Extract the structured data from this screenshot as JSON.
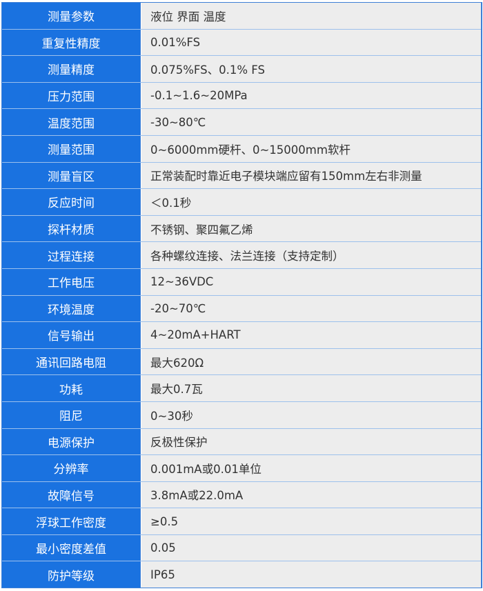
{
  "rows": [
    {
      "k": "测量参数",
      "v": "液位  界面  温度"
    },
    {
      "k": "重复性精度",
      "v": "0.01%FS"
    },
    {
      "k": "测量精度",
      "v": "0.075%FS、0.1% FS"
    },
    {
      "k": "压力范围",
      "v": "-0.1~1.6~20MPa"
    },
    {
      "k": "温度范围",
      "v": "-30~80℃"
    },
    {
      "k": "测量范围",
      "v": "0~6000mm硬杆、0~15000mm软杆"
    },
    {
      "k": "测量盲区",
      "v": "正常装配时靠近电子模块端应留有150mm左右非测量"
    },
    {
      "k": "反应时间",
      "v": "＜0.1秒"
    },
    {
      "k": "探杆材质",
      "v": "不锈钢、聚四氟乙烯"
    },
    {
      "k": "过程连接",
      "v": "各种螺纹连接、法兰连接（支持定制）"
    },
    {
      "k": "工作电压",
      "v": "12~36VDC"
    },
    {
      "k": "环境温度",
      "v": "-20~70℃"
    },
    {
      "k": "信号输出",
      "v": "4~20mA+HART"
    },
    {
      "k": "通讯回路电阻",
      "v": "最大620Ω"
    },
    {
      "k": "功耗",
      "v": "最大0.7瓦"
    },
    {
      "k": "阻尼",
      "v": "0~30秒"
    },
    {
      "k": "电源保护",
      "v": "反极性保护"
    },
    {
      "k": "分辨率",
      "v": "0.001mA或0.01单位"
    },
    {
      "k": "故障信号",
      "v": "3.8mA或22.0mA"
    },
    {
      "k": "浮球工作密度",
      "v": "≥0.5"
    },
    {
      "k": "最小密度差值",
      "v": "0.05"
    },
    {
      "k": "防护等级",
      "v": "IP65"
    }
  ]
}
